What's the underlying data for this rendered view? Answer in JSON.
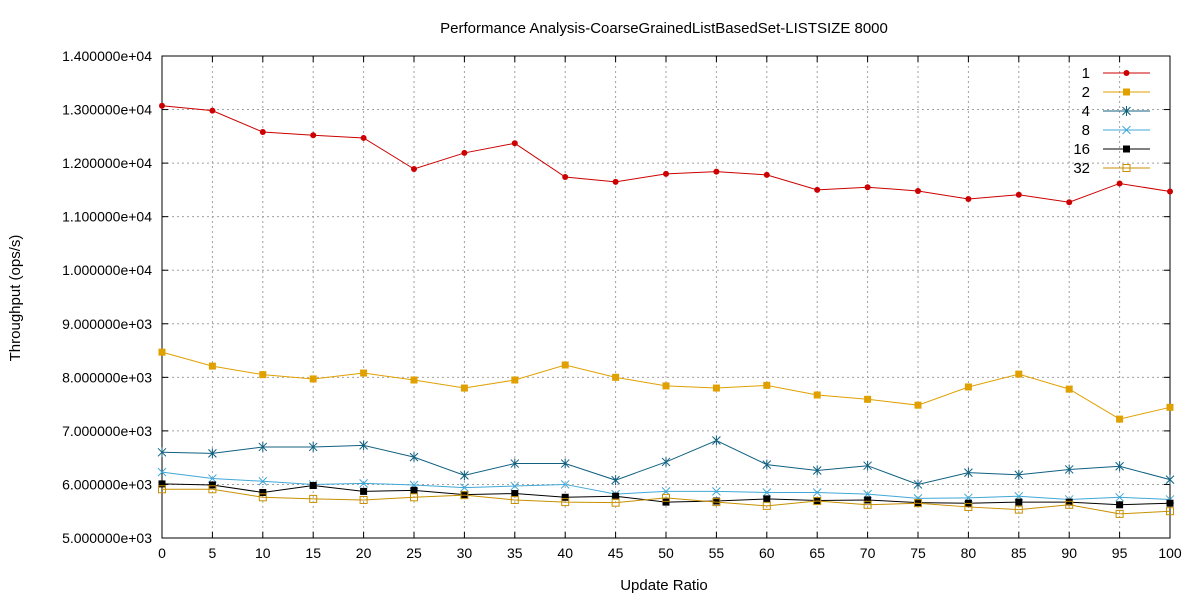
{
  "chart_data": {
    "type": "line",
    "title": "Performance Analysis-CoarseGrainedListBasedSet-LISTSIZE 8000",
    "xlabel": "Update Ratio",
    "ylabel": "Throughput (ops/s)",
    "xlim": [
      0,
      100
    ],
    "ylim": [
      5000,
      14000
    ],
    "grid": true,
    "legend_position": "top-right",
    "x_ticks": [
      0,
      5,
      10,
      15,
      20,
      25,
      30,
      35,
      40,
      45,
      50,
      55,
      60,
      65,
      70,
      75,
      80,
      85,
      90,
      95,
      100
    ],
    "x_tick_labels": [
      "0",
      "5",
      "10",
      "15",
      "20",
      "25",
      "30",
      "35",
      "40",
      "45",
      "50",
      "55",
      "60",
      "65",
      "70",
      "75",
      "80",
      "85",
      "90",
      "95",
      "100"
    ],
    "y_ticks": [
      5000,
      6000,
      7000,
      8000,
      9000,
      10000,
      11000,
      12000,
      13000,
      14000
    ],
    "y_tick_labels": [
      "5.000000e+03",
      "6.000000e+03",
      "7.000000e+03",
      "8.000000e+03",
      "9.000000e+03",
      "1.000000e+04",
      "1.100000e+04",
      "1.200000e+04",
      "1.300000e+04",
      "1.400000e+04"
    ],
    "x": [
      0,
      5,
      10,
      15,
      20,
      25,
      30,
      35,
      40,
      45,
      50,
      55,
      60,
      65,
      70,
      75,
      80,
      85,
      90,
      95,
      100
    ],
    "series": [
      {
        "name": "1",
        "color": "#cc0000",
        "marker": "filled-circle",
        "values": [
          13070,
          12980,
          12580,
          12520,
          12470,
          11890,
          12190,
          12370,
          11740,
          11650,
          11800,
          11840,
          11780,
          11500,
          11550,
          11480,
          11330,
          11410,
          11270,
          11620,
          11470
        ]
      },
      {
        "name": "2",
        "color": "#e0a000",
        "marker": "filled-square",
        "values": [
          8470,
          8210,
          8050,
          7970,
          8080,
          7950,
          7800,
          7950,
          8230,
          8000,
          7840,
          7800,
          7850,
          7670,
          7590,
          7480,
          7820,
          8060,
          7780,
          7220,
          7440
        ]
      },
      {
        "name": "4",
        "color": "#106080",
        "marker": "asterisk",
        "values": [
          6600,
          6580,
          6700,
          6700,
          6730,
          6510,
          6170,
          6390,
          6390,
          6080,
          6420,
          6820,
          6370,
          6260,
          6350,
          6000,
          6220,
          6180,
          6280,
          6340,
          6090
        ]
      },
      {
        "name": "8",
        "color": "#40a8d8",
        "marker": "cross",
        "values": [
          6230,
          6110,
          6060,
          6000,
          6020,
          5990,
          5940,
          5970,
          6000,
          5820,
          5870,
          5870,
          5850,
          5850,
          5820,
          5740,
          5750,
          5780,
          5720,
          5760,
          5720
        ]
      },
      {
        "name": "16",
        "color": "#000000",
        "marker": "filled-square",
        "values": [
          6010,
          5990,
          5850,
          5980,
          5870,
          5890,
          5810,
          5830,
          5760,
          5780,
          5670,
          5690,
          5730,
          5700,
          5710,
          5660,
          5650,
          5670,
          5670,
          5620,
          5650
        ]
      },
      {
        "name": "32",
        "color": "#c89000",
        "marker": "open-square",
        "values": [
          5910,
          5910,
          5760,
          5730,
          5710,
          5760,
          5800,
          5710,
          5670,
          5660,
          5750,
          5670,
          5600,
          5690,
          5620,
          5650,
          5580,
          5530,
          5620,
          5450,
          5500
        ]
      }
    ]
  }
}
